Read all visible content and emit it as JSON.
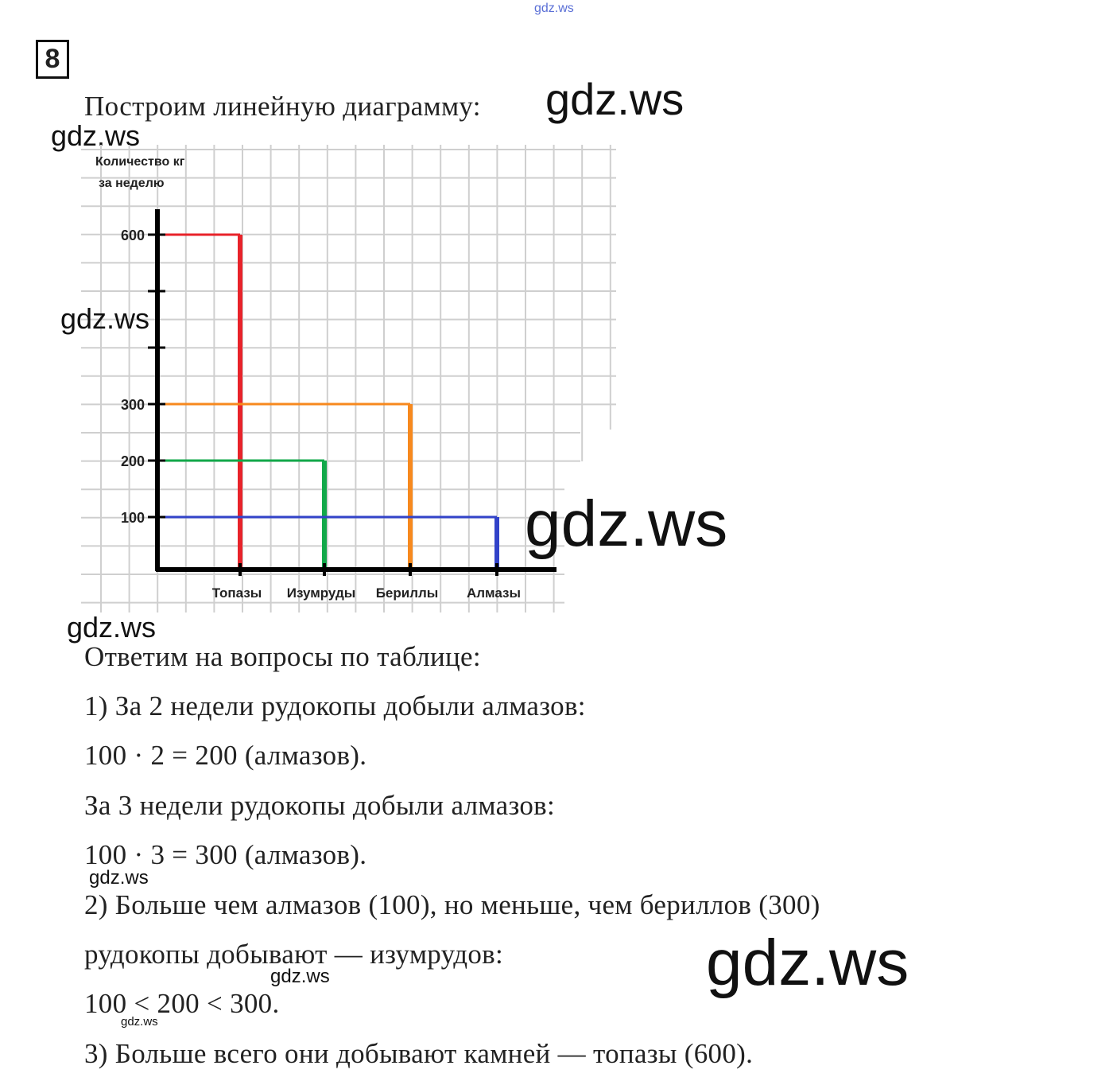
{
  "task_number": "8",
  "intro": "Построим линейную диаграмму:",
  "watermarks": [
    "gdz.ws",
    "gdz.ws",
    "gdz.ws",
    "gdz.ws",
    "gdz.ws",
    "gdz.ws",
    "gdz.ws",
    "gdz.ws",
    "gdz.ws"
  ],
  "chart_data": {
    "type": "bar",
    "title": "",
    "ylabel_line1": "Количество кг",
    "ylabel_line2": "за неделю",
    "xlabel": "",
    "categories": [
      "Топазы",
      "Изумруды",
      "Бериллы",
      "Алмазы"
    ],
    "values": [
      600,
      200,
      300,
      100
    ],
    "colors": [
      "#e8232a",
      "#12a84a",
      "#f7891e",
      "#3243c9"
    ],
    "yticks_labeled": [
      "100",
      "200",
      "300",
      "600"
    ],
    "ytick_values": [
      100,
      200,
      300,
      400,
      500,
      600
    ],
    "ylim": [
      0,
      650
    ],
    "grid": true
  },
  "answers": {
    "heading": "Ответим на вопросы по таблице:",
    "lines": [
      "1) За 2 недели рудокопы добыли алмазов:",
      "100 · 2 = 200 (алмазов).",
      "За 3 недели рудокопы добыли алмазов:",
      "100 · 3 = 300 (алмазов).",
      "2) Больше чем алмазов (100), но меньше, чем бериллов (300)",
      "рудокопы добывают — изумрудов:",
      "100 < 200 < 300.",
      "3) Больше всего они добывают камней — топазы (600)."
    ]
  }
}
